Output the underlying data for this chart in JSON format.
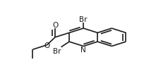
{
  "bg_color": "#ffffff",
  "line_color": "#1a1a1a",
  "linewidth": 1.2,
  "fontsize": 7.5,
  "xlim": [
    0.0,
    1.0
  ],
  "ylim": [
    0.0,
    1.0
  ],
  "figsize": [
    2.04,
    1.13
  ],
  "dpi": 100
}
